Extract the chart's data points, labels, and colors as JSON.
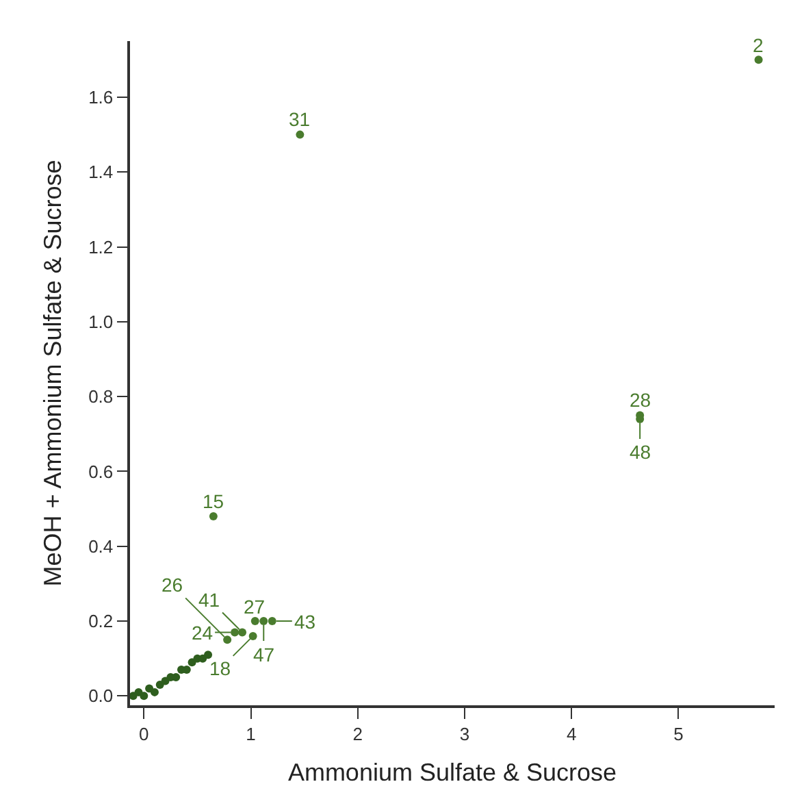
{
  "chart_data": {
    "type": "scatter",
    "xlabel": "Ammonium Sulfate & Sucrose",
    "ylabel": "MeOH + Ammonium Sulfate & Sucrose",
    "xlim": [
      -0.13,
      5.9
    ],
    "ylim": [
      -0.025,
      1.75
    ],
    "xticks": [
      0,
      1,
      2,
      3,
      4,
      5
    ],
    "yticks": [
      {
        "value": 0,
        "label": "0.0"
      },
      {
        "value": 0.2,
        "label": "0.2"
      },
      {
        "value": 0.4,
        "label": "0.4"
      },
      {
        "value": 0.6,
        "label": "0.6"
      },
      {
        "value": 0.8,
        "label": "0.8"
      },
      {
        "value": 1.0,
        "label": "1.0"
      },
      {
        "value": 1.2,
        "label": "1.2"
      },
      {
        "value": 1.4,
        "label": "1.4"
      },
      {
        "value": 1.6,
        "label": "1.6"
      }
    ],
    "marker": "circle",
    "annotations": [
      {
        "text": "2",
        "x": 5.75,
        "y": 1.7
      },
      {
        "text": "31",
        "x": 1.46,
        "y": 1.5
      },
      {
        "text": "15",
        "x": 0.65,
        "y": 0.48
      },
      {
        "text": "28",
        "x": 4.64,
        "y": 0.75
      },
      {
        "text": "48",
        "x": 4.64,
        "y": 0.74
      },
      {
        "text": "27",
        "x": 1.04,
        "y": 0.2
      },
      {
        "text": "47",
        "x": 1.12,
        "y": 0.2
      },
      {
        "text": "43",
        "x": 1.2,
        "y": 0.2
      },
      {
        "text": "24",
        "x": 0.85,
        "y": 0.17
      },
      {
        "text": "41",
        "x": 0.92,
        "y": 0.17
      },
      {
        "text": "18",
        "x": 1.02,
        "y": 0.16
      },
      {
        "text": "26",
        "x": 0.78,
        "y": 0.15
      }
    ],
    "series": [
      {
        "color": "#4a7c2e",
        "x": [
          5.75,
          1.46,
          0.65,
          4.64,
          4.64,
          1.04,
          1.12,
          1.2,
          0.85,
          0.92,
          1.02,
          0.78
        ],
        "values": [
          1.7,
          1.5,
          0.48,
          0.75,
          0.74,
          0.2,
          0.2,
          0.2,
          0.17,
          0.17,
          0.16,
          0.15
        ]
      },
      {
        "color": "#2e5e1e",
        "x": [
          -0.1,
          -0.05,
          0.0,
          0.05,
          0.1,
          0.15,
          0.2,
          0.25,
          0.3,
          0.35,
          0.4,
          0.45,
          0.5,
          0.55,
          0.6
        ],
        "values": [
          0.0,
          0.01,
          0.0,
          0.02,
          0.01,
          0.03,
          0.04,
          0.05,
          0.05,
          0.07,
          0.07,
          0.09,
          0.1,
          0.1,
          0.11
        ]
      }
    ]
  }
}
